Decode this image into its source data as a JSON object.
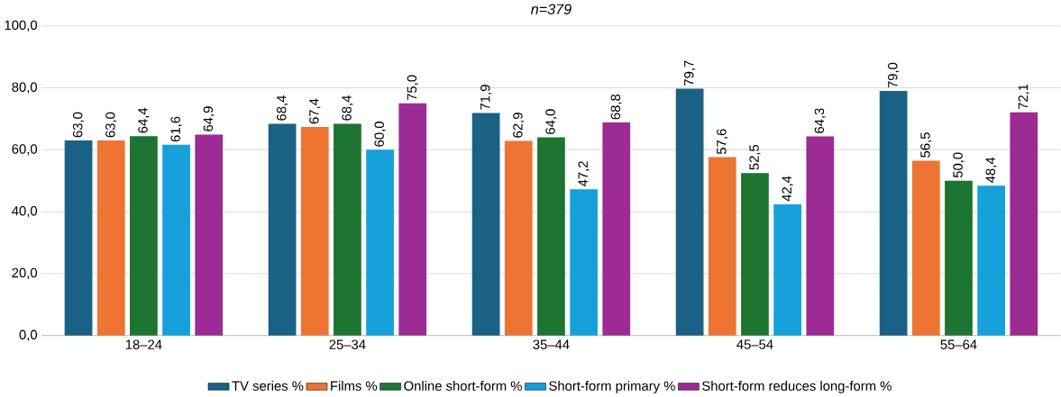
{
  "chart_data": {
    "type": "bar",
    "title": "n=379",
    "categories": [
      "18–24",
      "25–34",
      "35–44",
      "45–54",
      "55–64"
    ],
    "series": [
      {
        "name": "TV series %",
        "color": "#1b6185",
        "values": [
          63.0,
          68.4,
          71.9,
          79.7,
          79.0
        ],
        "value_labels": [
          "63,0",
          "68,4",
          "71,9",
          "79,7",
          "79,0"
        ]
      },
      {
        "name": "Films %",
        "color": "#ed7433",
        "values": [
          63.0,
          67.4,
          62.9,
          57.6,
          56.5
        ],
        "value_labels": [
          "63,0",
          "67,4",
          "62,9",
          "57,6",
          "56,5"
        ]
      },
      {
        "name": "Online short-form %",
        "color": "#1e7431",
        "values": [
          64.4,
          68.4,
          64.0,
          52.5,
          50.0
        ],
        "value_labels": [
          "64,4",
          "68,4",
          "64,0",
          "52,5",
          "50,0"
        ]
      },
      {
        "name": "Short-form primary %",
        "color": "#16a0da",
        "values": [
          61.6,
          60.0,
          47.2,
          42.4,
          48.4
        ],
        "value_labels": [
          "61,6",
          "60,0",
          "47,2",
          "42,4",
          "48,4"
        ]
      },
      {
        "name": "Short-form reduces long-form %",
        "color": "#9c2c94",
        "values": [
          64.9,
          75.0,
          68.8,
          64.3,
          72.1
        ],
        "value_labels": [
          "64,9",
          "75,0",
          "68,8",
          "64,3",
          "72,1"
        ]
      }
    ],
    "ylim": [
      0,
      100
    ],
    "yticks": [
      {
        "value": 0,
        "label": "0,0"
      },
      {
        "value": 20,
        "label": "20,0"
      },
      {
        "value": 40,
        "label": "40,0"
      },
      {
        "value": 60,
        "label": "60,0"
      },
      {
        "value": 80,
        "label": "80,0"
      },
      {
        "value": 100,
        "label": "100,0"
      }
    ],
    "grid": "y",
    "legend": "bottom"
  }
}
